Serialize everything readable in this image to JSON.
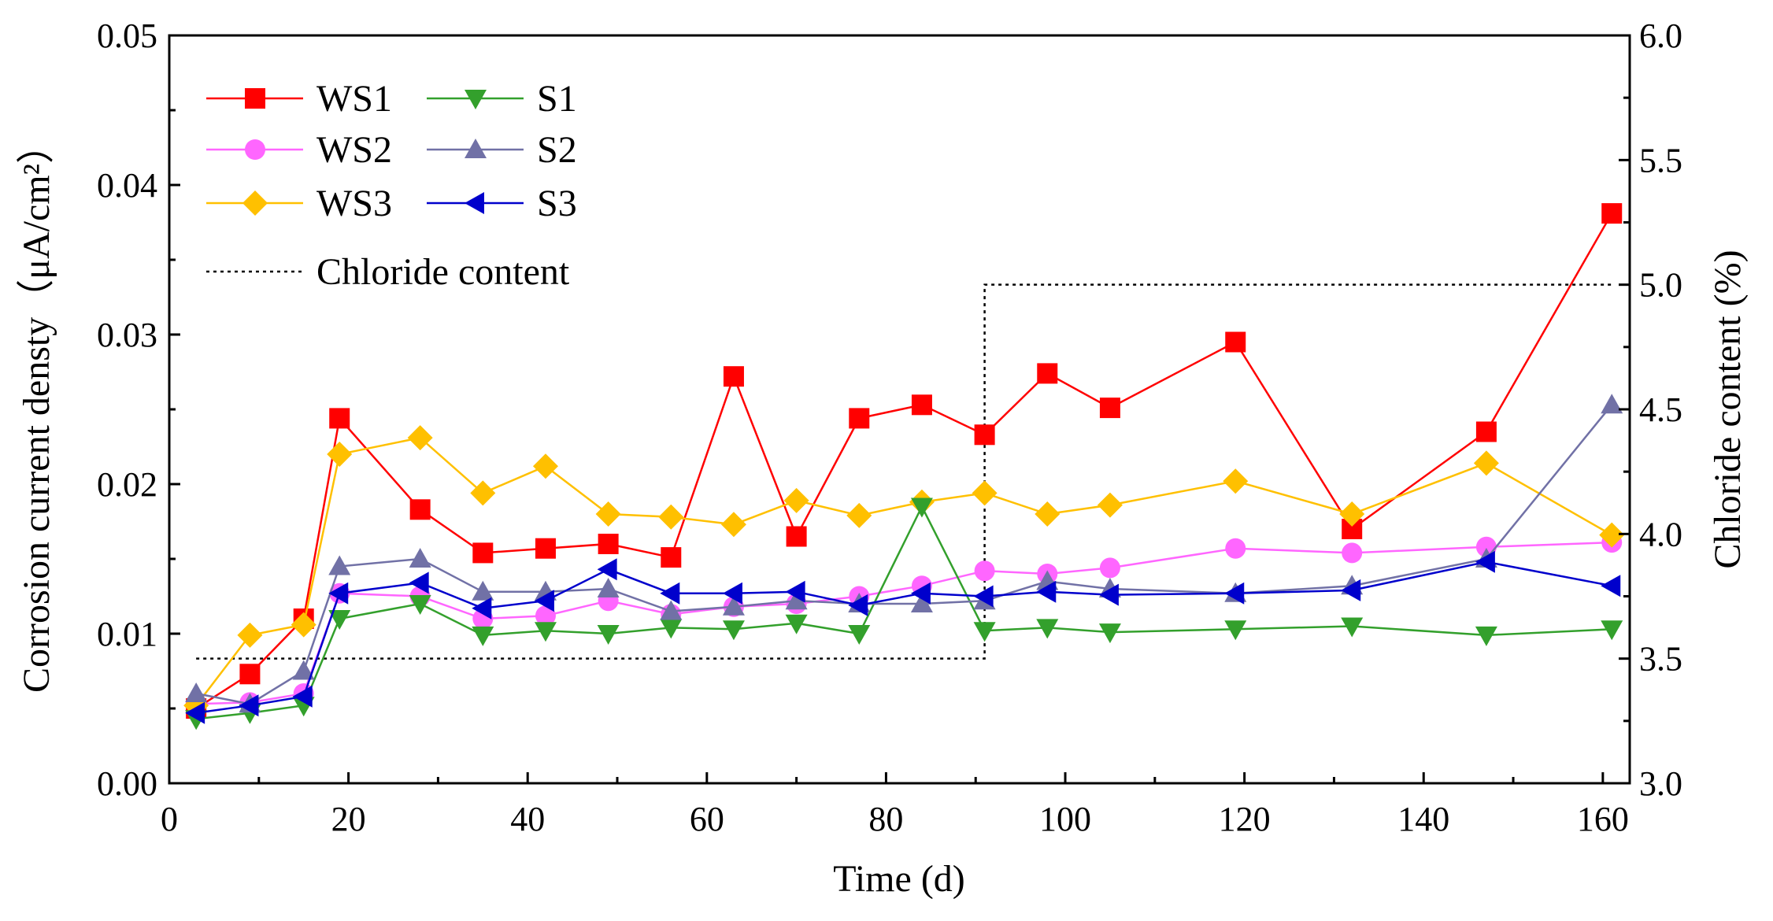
{
  "chart_data": {
    "type": "line",
    "title": "",
    "xlabel": "Time (d)",
    "ylabel": "Corrosion current densty（μA/cm²）",
    "ylabel_right": "Chloride content (%)",
    "xlim": [
      0,
      163
    ],
    "ylim": [
      0,
      0.05
    ],
    "ylim_right": [
      3.0,
      6.0
    ],
    "x_ticks": [
      0,
      20,
      40,
      60,
      80,
      100,
      120,
      140,
      160
    ],
    "x_tick_labels": [
      "0",
      "20",
      "40",
      "60",
      "80",
      "100",
      "120",
      "140",
      "160"
    ],
    "y_ticks": [
      0,
      0.01,
      0.02,
      0.03,
      0.04,
      0.05
    ],
    "y_tick_labels": [
      "0.00",
      "0.01",
      "0.02",
      "0.03",
      "0.04",
      "0.05"
    ],
    "y_right_ticks": [
      3.0,
      3.5,
      4.0,
      4.5,
      5.0,
      5.5,
      6.0
    ],
    "y_right_tick_labels": [
      "3.0",
      "3.5",
      "4.0",
      "4.5",
      "5.0",
      "5.5",
      "6.0"
    ],
    "grid": false,
    "legend_position": "top-left",
    "series": [
      {
        "name": "WS1",
        "color": "#ff0000",
        "marker": "square",
        "x": [
          3,
          9,
          15,
          19,
          28,
          35,
          42,
          49,
          56,
          63,
          70,
          77,
          84,
          91,
          98,
          105,
          119,
          132,
          147,
          161
        ],
        "y": [
          0.005,
          0.0073,
          0.011,
          0.0244,
          0.0183,
          0.0154,
          0.0157,
          0.016,
          0.0151,
          0.0272,
          0.0165,
          0.0244,
          0.0253,
          0.0233,
          0.0274,
          0.0251,
          0.0295,
          0.017,
          0.0235,
          0.0381
        ]
      },
      {
        "name": "WS2",
        "color": "#ff66ff",
        "marker": "circle",
        "x": [
          3,
          9,
          15,
          19,
          28,
          35,
          42,
          49,
          56,
          63,
          70,
          77,
          84,
          91,
          98,
          105,
          119,
          132,
          147,
          161
        ],
        "y": [
          0.0053,
          0.0054,
          0.006,
          0.0127,
          0.0125,
          0.011,
          0.0112,
          0.0122,
          0.0113,
          0.0118,
          0.012,
          0.0125,
          0.0132,
          0.0142,
          0.014,
          0.0144,
          0.0157,
          0.0154,
          0.0158,
          0.0161
        ]
      },
      {
        "name": "WS3",
        "color": "#ffc000",
        "marker": "diamond",
        "x": [
          3,
          9,
          15,
          19,
          28,
          35,
          42,
          49,
          56,
          63,
          70,
          77,
          84,
          91,
          98,
          105,
          119,
          132,
          147,
          161
        ],
        "y": [
          0.0052,
          0.0099,
          0.0106,
          0.022,
          0.0231,
          0.0194,
          0.0212,
          0.018,
          0.0178,
          0.0173,
          0.0189,
          0.0179,
          0.0188,
          0.0194,
          0.018,
          0.0186,
          0.0202,
          0.018,
          0.0214,
          0.0166
        ]
      },
      {
        "name": "S1",
        "color": "#33a02c",
        "marker": "triangle-down",
        "x": [
          3,
          9,
          15,
          19,
          28,
          35,
          42,
          49,
          56,
          63,
          70,
          77,
          84,
          91,
          98,
          105,
          119,
          132,
          147,
          161
        ],
        "y": [
          0.0043,
          0.0047,
          0.0052,
          0.011,
          0.012,
          0.0099,
          0.0102,
          0.01,
          0.0104,
          0.0103,
          0.0107,
          0.01,
          0.0185,
          0.0102,
          0.0104,
          0.0101,
          0.0103,
          0.0105,
          0.0099,
          0.0103
        ]
      },
      {
        "name": "S2",
        "color": "#7171a6",
        "marker": "triangle-up",
        "x": [
          3,
          9,
          15,
          19,
          28,
          35,
          42,
          49,
          56,
          63,
          70,
          77,
          84,
          91,
          98,
          105,
          119,
          132,
          147,
          161
        ],
        "y": [
          0.006,
          0.0053,
          0.0075,
          0.0145,
          0.015,
          0.0128,
          0.0128,
          0.013,
          0.0115,
          0.0118,
          0.0122,
          0.012,
          0.012,
          0.0122,
          0.0135,
          0.013,
          0.0127,
          0.0132,
          0.015,
          0.0253
        ]
      },
      {
        "name": "S3",
        "color": "#0000cc",
        "marker": "triangle-left",
        "x": [
          3,
          9,
          15,
          19,
          28,
          35,
          42,
          49,
          56,
          63,
          70,
          77,
          84,
          91,
          98,
          105,
          119,
          132,
          147,
          161
        ],
        "y": [
          0.0047,
          0.0052,
          0.0058,
          0.0127,
          0.0134,
          0.0117,
          0.0122,
          0.0143,
          0.0127,
          0.0127,
          0.0128,
          0.0119,
          0.0127,
          0.0125,
          0.0128,
          0.0126,
          0.0127,
          0.0129,
          0.0148,
          0.0132
        ]
      }
    ],
    "reference_line": {
      "name": "Chloride content",
      "style": "dotted",
      "color": "#000000",
      "axis": "right",
      "x": [
        3,
        91,
        91,
        161
      ],
      "y": [
        3.5,
        3.5,
        5.0,
        5.0
      ]
    }
  }
}
